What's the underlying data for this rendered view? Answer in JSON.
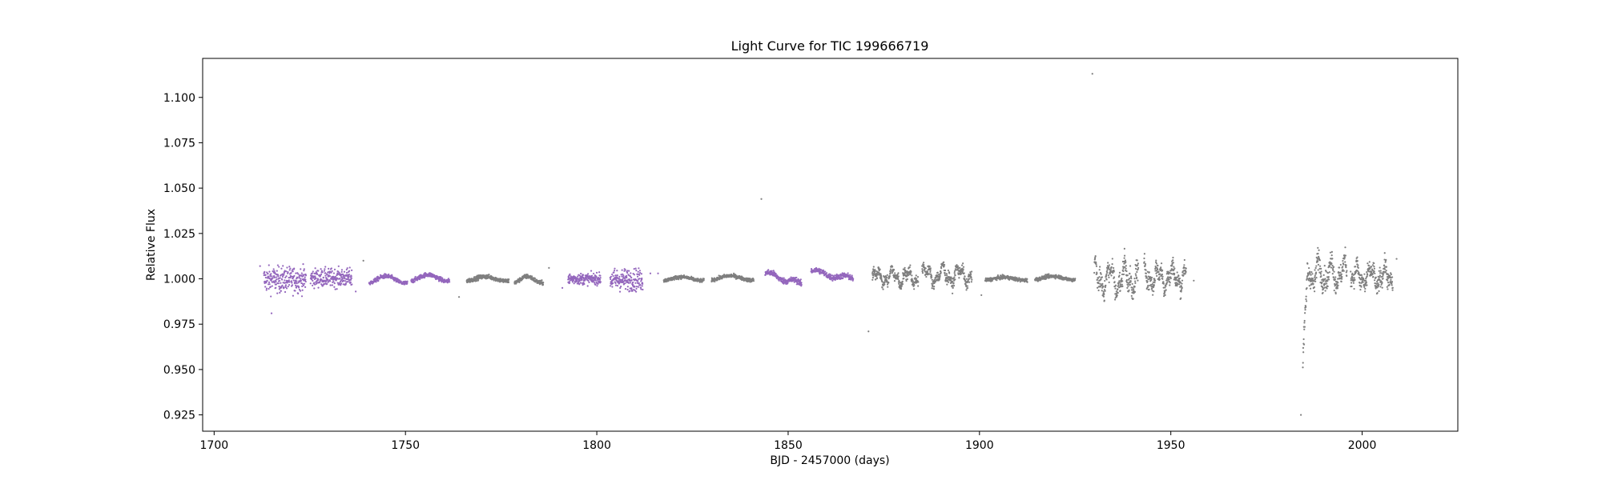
{
  "chart_data": {
    "type": "scatter",
    "title": "Light Curve for TIC 199666719",
    "xlabel": "BJD - 2457000 (days)",
    "ylabel": "Relative Flux",
    "xlim": [
      1697,
      2025
    ],
    "ylim": [
      0.916,
      1.1215
    ],
    "xticks": [
      1700,
      1750,
      1800,
      1850,
      1900,
      1950,
      2000
    ],
    "xtick_labels": [
      "1700",
      "1750",
      "1800",
      "1850",
      "1900",
      "1950",
      "2000"
    ],
    "yticks": [
      0.925,
      0.95,
      0.975,
      1.0,
      1.025,
      1.05,
      1.075,
      1.1
    ],
    "ytick_labels": [
      "0.925",
      "0.950",
      "0.975",
      "1.000",
      "1.025",
      "1.050",
      "1.075",
      "1.100"
    ],
    "grid": false,
    "colors": {
      "purple": "#9467bd",
      "gray": "#7f7f7f"
    },
    "segments": [
      {
        "color": "purple",
        "x_start": 1713.0,
        "x_end": 1724.0,
        "shape": "flat",
        "center": 0.9995,
        "amp": 0.0,
        "noise": 0.0035
      },
      {
        "color": "purple",
        "x_start": 1725.2,
        "x_end": 1736.0,
        "shape": "flat",
        "center": 1.0005,
        "amp": 0.0,
        "noise": 0.0025
      },
      {
        "color": "purple",
        "x_start": 1740.5,
        "x_end": 1750.5,
        "shape": "wave",
        "center": 0.9995,
        "amp": 0.002,
        "noise": 0.0006
      },
      {
        "color": "purple",
        "x_start": 1751.5,
        "x_end": 1761.5,
        "shape": "wave",
        "center": 1.0005,
        "amp": 0.0018,
        "noise": 0.0006
      },
      {
        "color": "gray",
        "x_start": 1766.0,
        "x_end": 1777.0,
        "shape": "wave",
        "center": 1.0,
        "amp": 0.0012,
        "noise": 0.0006
      },
      {
        "color": "gray",
        "x_start": 1778.5,
        "x_end": 1786.0,
        "shape": "wave",
        "center": 0.9995,
        "amp": 0.0018,
        "noise": 0.0006
      },
      {
        "color": "purple",
        "x_start": 1792.5,
        "x_end": 1801.0,
        "shape": "flat",
        "center": 1.0,
        "amp": 0.0,
        "noise": 0.0015
      },
      {
        "color": "purple",
        "x_start": 1803.5,
        "x_end": 1812.0,
        "shape": "flat",
        "center": 0.9995,
        "amp": 0.0,
        "noise": 0.003
      },
      {
        "color": "gray",
        "x_start": 1817.5,
        "x_end": 1828.0,
        "shape": "wave",
        "center": 1.0,
        "amp": 0.001,
        "noise": 0.0005
      },
      {
        "color": "gray",
        "x_start": 1830.0,
        "x_end": 1841.0,
        "shape": "wave",
        "center": 1.0005,
        "amp": 0.0012,
        "noise": 0.0005
      },
      {
        "color": "purple",
        "x_start": 1844.0,
        "x_end": 1853.5,
        "shape": "decline",
        "center": 0.9995,
        "amp": 0.006,
        "noise": 0.0008
      },
      {
        "color": "purple",
        "x_start": 1856.0,
        "x_end": 1867.0,
        "shape": "decline",
        "center": 1.0015,
        "amp": 0.0045,
        "noise": 0.0008
      },
      {
        "color": "gray",
        "x_start": 1872.0,
        "x_end": 1884.0,
        "shape": "noisy",
        "center": 1.001,
        "amp": 0.006,
        "noise": 0.0015
      },
      {
        "color": "gray",
        "x_start": 1885.0,
        "x_end": 1898.0,
        "shape": "noisy",
        "center": 1.002,
        "amp": 0.007,
        "noise": 0.0015
      },
      {
        "color": "gray",
        "x_start": 1901.5,
        "x_end": 1912.5,
        "shape": "wave",
        "center": 1.0,
        "amp": 0.0008,
        "noise": 0.0005
      },
      {
        "color": "gray",
        "x_start": 1914.5,
        "x_end": 1925.0,
        "shape": "wave",
        "center": 1.0005,
        "amp": 0.001,
        "noise": 0.0005
      },
      {
        "color": "gray",
        "x_start": 1930.0,
        "x_end": 1941.5,
        "shape": "noisy",
        "center": 1.0,
        "amp": 0.011,
        "noise": 0.003
      },
      {
        "color": "gray",
        "x_start": 1943.0,
        "x_end": 1954.0,
        "shape": "noisy",
        "center": 1.001,
        "amp": 0.008,
        "noise": 0.0025
      },
      {
        "color": "gray",
        "x_start": 1984.5,
        "x_end": 1996.0,
        "shape": "rise",
        "center": 1.003,
        "amp": 0.01,
        "noise": 0.003
      },
      {
        "color": "gray",
        "x_start": 1997.0,
        "x_end": 2008.0,
        "shape": "noisy",
        "center": 1.001,
        "amp": 0.008,
        "noise": 0.0025
      }
    ],
    "outliers": [
      {
        "x": 1929.5,
        "y": 1.113,
        "color": "gray"
      },
      {
        "x": 1843.0,
        "y": 1.044,
        "color": "gray"
      },
      {
        "x": 1871.0,
        "y": 0.971,
        "color": "gray"
      },
      {
        "x": 1984.0,
        "y": 0.925,
        "color": "gray"
      },
      {
        "x": 1712.0,
        "y": 1.007,
        "color": "purple"
      },
      {
        "x": 1715.0,
        "y": 0.981,
        "color": "purple"
      },
      {
        "x": 1739.0,
        "y": 1.01,
        "color": "gray"
      },
      {
        "x": 1737.0,
        "y": 0.993,
        "color": "purple"
      },
      {
        "x": 1764.0,
        "y": 0.99,
        "color": "gray"
      },
      {
        "x": 1787.5,
        "y": 1.006,
        "color": "gray"
      },
      {
        "x": 1791.0,
        "y": 0.995,
        "color": "purple"
      },
      {
        "x": 1814.0,
        "y": 1.003,
        "color": "purple"
      },
      {
        "x": 1816.0,
        "y": 1.003,
        "color": "purple"
      },
      {
        "x": 1900.5,
        "y": 0.991,
        "color": "gray"
      },
      {
        "x": 1956.0,
        "y": 0.999,
        "color": "gray"
      },
      {
        "x": 2009.0,
        "y": 1.011,
        "color": "gray"
      }
    ]
  }
}
